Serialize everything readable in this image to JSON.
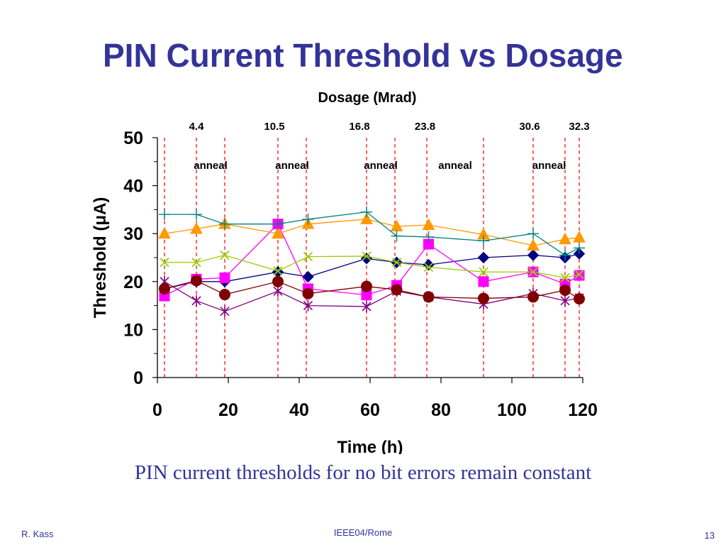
{
  "slide": {
    "title": "PIN Current Threshold vs Dosage",
    "subtitle": "PIN current thresholds for no bit errors remain constant",
    "footer_left": "R. Kass",
    "footer_center": "IEEE04/Rome",
    "page_number": "13"
  },
  "chart_data": {
    "type": "line",
    "xlabel": "Time (h)",
    "ylabel": "Threshold (μA)",
    "top_axis_label": "Dosage (Mrad)",
    "xlim": [
      0,
      120
    ],
    "ylim": [
      0,
      50
    ],
    "x_ticks": [
      "0",
      "20",
      "40",
      "60",
      "80",
      "100",
      "120"
    ],
    "y_ticks": [
      "0",
      "10",
      "20",
      "30",
      "40",
      "50"
    ],
    "dosage_marks": [
      {
        "x": 11,
        "label": "4.4"
      },
      {
        "x": 33,
        "label": "10.5"
      },
      {
        "x": 57,
        "label": "16.8"
      },
      {
        "x": 75.5,
        "label": "23.8"
      },
      {
        "x": 105,
        "label": "30.6"
      },
      {
        "x": 119,
        "label": "32.3"
      }
    ],
    "anneal_labels": [
      {
        "x": 15,
        "label": "anneal"
      },
      {
        "x": 38,
        "label": "anneal"
      },
      {
        "x": 63,
        "label": "anneal"
      },
      {
        "x": 84,
        "label": "anneal"
      },
      {
        "x": 110.5,
        "label": "anneal"
      }
    ],
    "reference_lines_x": [
      2,
      11,
      19,
      34,
      42,
      59,
      67,
      76,
      92,
      106,
      115,
      119
    ],
    "reference_line_color": "#ff0000",
    "series": [
      {
        "marker": "diamond",
        "color": "#000080",
        "points": [
          [
            2,
            18.5
          ],
          [
            11,
            20
          ],
          [
            19,
            20
          ],
          [
            34,
            22
          ],
          [
            42.5,
            21
          ],
          [
            59,
            24.8
          ],
          [
            67.5,
            24
          ],
          [
            76.5,
            23.5
          ],
          [
            92,
            25
          ],
          [
            106,
            25.5
          ],
          [
            115,
            25
          ],
          [
            119,
            25.8
          ]
        ]
      },
      {
        "marker": "square",
        "color": "#ff00ff",
        "points": [
          [
            2,
            17
          ],
          [
            11,
            20.5
          ],
          [
            19,
            20.8
          ],
          [
            34,
            32
          ],
          [
            42.5,
            18.5
          ],
          [
            59,
            17.2
          ],
          [
            67.5,
            19.2
          ],
          [
            76.5,
            27.8
          ],
          [
            92,
            20
          ],
          [
            106,
            22
          ],
          [
            115,
            19.5
          ],
          [
            119,
            21.3
          ]
        ]
      },
      {
        "marker": "triangle",
        "color": "#ff9900",
        "points": [
          [
            2,
            30
          ],
          [
            11,
            31
          ],
          [
            19,
            32
          ],
          [
            34,
            30
          ],
          [
            42.5,
            32
          ],
          [
            59,
            33
          ],
          [
            67.5,
            31.5
          ],
          [
            76.5,
            31.8
          ],
          [
            92,
            29.8
          ],
          [
            106,
            27.5
          ],
          [
            115,
            28.8
          ],
          [
            119,
            29.2
          ]
        ]
      },
      {
        "marker": "cross",
        "color": "#99cc00",
        "points": [
          [
            2,
            24
          ],
          [
            11,
            24
          ],
          [
            19,
            25.5
          ],
          [
            34,
            22.2
          ],
          [
            42.5,
            25.2
          ],
          [
            59,
            25.3
          ],
          [
            67.5,
            24
          ],
          [
            76.5,
            23
          ],
          [
            92,
            22
          ],
          [
            106,
            22
          ],
          [
            115,
            20.8
          ],
          [
            119,
            21.5
          ]
        ]
      },
      {
        "marker": "star",
        "color": "#800080",
        "points": [
          [
            2,
            20
          ],
          [
            11,
            16
          ],
          [
            19,
            13.8
          ],
          [
            34,
            18
          ],
          [
            42.5,
            15
          ],
          [
            59,
            14.8
          ],
          [
            67.5,
            18
          ],
          [
            76.5,
            16.8
          ],
          [
            92,
            15.3
          ],
          [
            106,
            17.5
          ],
          [
            115,
            16
          ],
          [
            119,
            16.6
          ]
        ]
      },
      {
        "marker": "plus",
        "color": "#008080",
        "points": [
          [
            2,
            34
          ],
          [
            11,
            34
          ],
          [
            19,
            32
          ],
          [
            34,
            32
          ],
          [
            42.5,
            33
          ],
          [
            59,
            34.5
          ],
          [
            67.5,
            29.5
          ],
          [
            76.5,
            29.3
          ],
          [
            92,
            28.5
          ],
          [
            106,
            30
          ],
          [
            115,
            25.5
          ],
          [
            119,
            27
          ]
        ]
      },
      {
        "marker": "circle",
        "color": "#800000",
        "points": [
          [
            2,
            18.5
          ],
          [
            11,
            20.2
          ],
          [
            19,
            17.3
          ],
          [
            34,
            20
          ],
          [
            42.5,
            17.5
          ],
          [
            59,
            19
          ],
          [
            67.5,
            18.3
          ],
          [
            76.5,
            16.8
          ],
          [
            92,
            16.5
          ],
          [
            106,
            16.8
          ],
          [
            115,
            18.2
          ],
          [
            119,
            16.4
          ]
        ]
      }
    ]
  }
}
